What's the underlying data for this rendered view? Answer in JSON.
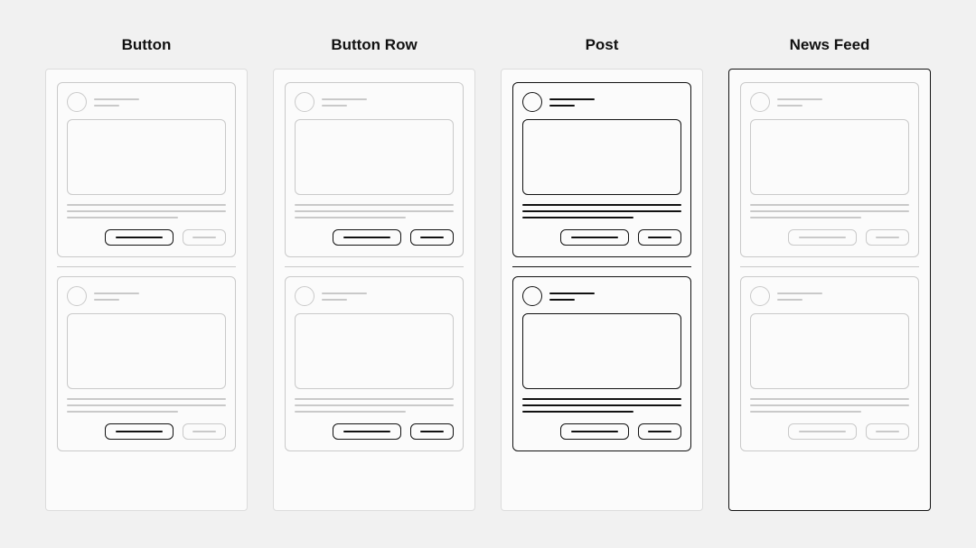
{
  "background": "#f1f1f1",
  "muted": "#c9c9c9",
  "dark": "#111111",
  "phone_muted_border": "#dcdcdc",
  "phone_dark_border": "#111111",
  "title_fontsize": 17,
  "columns": [
    {
      "key": "button",
      "title": "Button",
      "phone_border": "muted",
      "post_border": "muted",
      "divider": "muted",
      "avatar": "muted",
      "meta": "muted",
      "image": "muted",
      "textlines": "muted",
      "buttonrow_border": "muted",
      "primary_btn": {
        "border": "dark",
        "line": "dark"
      },
      "secondary_btn": {
        "border": "muted",
        "line": "muted"
      }
    },
    {
      "key": "buttonrow",
      "title": "Button Row",
      "phone_border": "muted",
      "post_border": "muted",
      "divider": "muted",
      "avatar": "muted",
      "meta": "muted",
      "image": "muted",
      "textlines": "muted",
      "buttonrow_border": "dark",
      "primary_btn": {
        "border": "dark",
        "line": "dark"
      },
      "secondary_btn": {
        "border": "dark",
        "line": "dark"
      }
    },
    {
      "key": "post",
      "title": "Post",
      "phone_border": "muted",
      "post_border": "dark",
      "divider": "dark",
      "avatar": "dark",
      "meta": "dark",
      "image": "dark",
      "textlines": "dark",
      "buttonrow_border": "dark",
      "primary_btn": {
        "border": "dark",
        "line": "dark"
      },
      "secondary_btn": {
        "border": "dark",
        "line": "dark"
      }
    },
    {
      "key": "newsfeed",
      "title": "News Feed",
      "phone_border": "dark",
      "post_border": "muted",
      "divider": "muted",
      "avatar": "muted",
      "meta": "muted",
      "image": "muted",
      "textlines": "muted",
      "buttonrow_border": "muted",
      "primary_btn": {
        "border": "muted",
        "line": "muted"
      },
      "secondary_btn": {
        "border": "muted",
        "line": "muted"
      }
    }
  ],
  "meta_line_widths": [
    50,
    28
  ],
  "text_line_widths": [
    100,
    100,
    70
  ],
  "btn_primary_line_width": 52,
  "btn_secondary_line_width": 26
}
